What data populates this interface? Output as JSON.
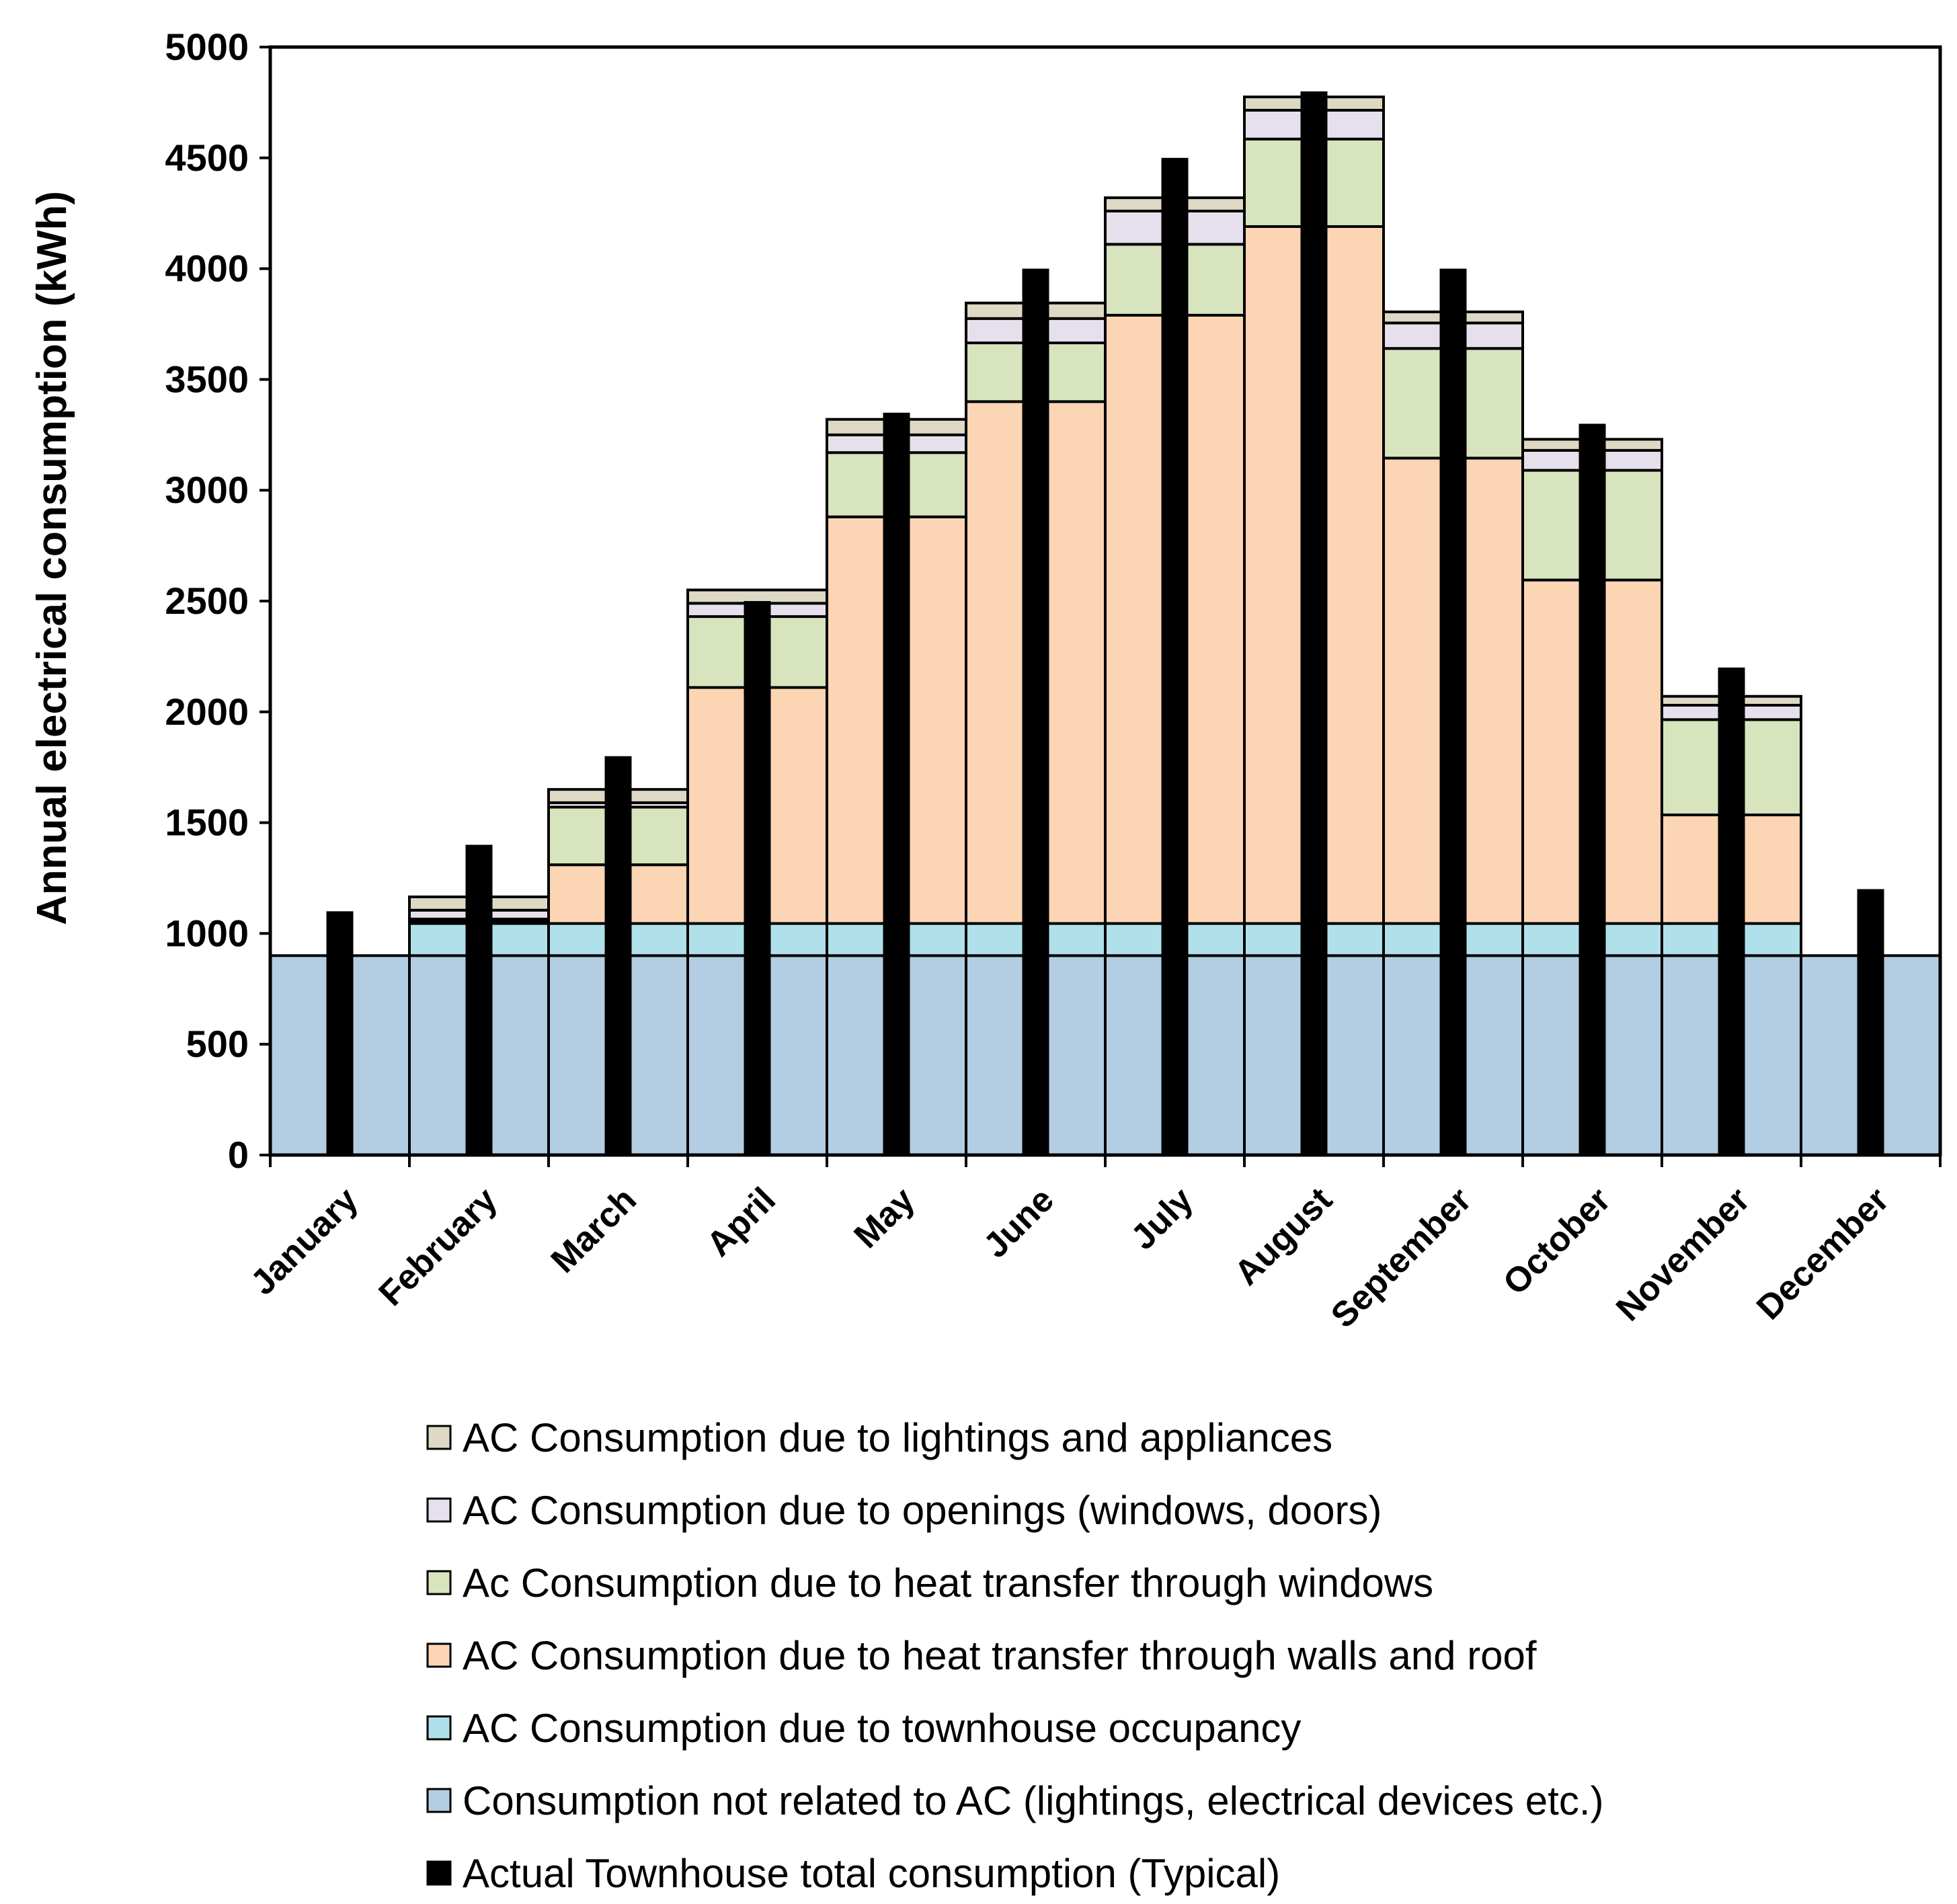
{
  "chart_data": {
    "type": "bar",
    "stacked": true,
    "title": "",
    "xlabel": "",
    "ylabel": "Annual electrical consumption (kWh)",
    "ylim": [
      0,
      5000
    ],
    "yticks": [
      0,
      500,
      1000,
      1500,
      2000,
      2500,
      3000,
      3500,
      4000,
      4500,
      5000
    ],
    "grid": false,
    "legend_position": "bottom",
    "categories": [
      "January",
      "February",
      "March",
      "April",
      "May",
      "June",
      "July",
      "August",
      "September",
      "October",
      "November",
      "December"
    ],
    "stack_series": [
      {
        "name": "Consumption not related to AC (lightings, electrical devices etc.)",
        "color": "#b3cde3",
        "values": [
          900,
          900,
          900,
          900,
          900,
          900,
          900,
          900,
          900,
          900,
          900,
          900
        ]
      },
      {
        "name": "AC Consumption due to townhouse occupancy",
        "color": "#b0e1ea",
        "values": [
          0,
          145,
          145,
          145,
          145,
          145,
          145,
          145,
          145,
          145,
          145,
          0
        ]
      },
      {
        "name": "AC Consumption due to heat transfer through walls and roof",
        "color": "#fcd5b5",
        "values": [
          0,
          10,
          265,
          1065,
          1835,
          2355,
          2745,
          3145,
          2100,
          1550,
          490,
          0
        ]
      },
      {
        "name": "Ac Consumption due to heat transfer through windows",
        "color": "#d7e4bd",
        "values": [
          0,
          10,
          260,
          320,
          290,
          265,
          320,
          395,
          495,
          495,
          430,
          0
        ]
      },
      {
        "name": "AC Consumption due to openings (windows, doors)",
        "color": "#e6e0ec",
        "values": [
          0,
          40,
          20,
          60,
          80,
          110,
          150,
          130,
          115,
          90,
          65,
          0
        ]
      },
      {
        "name": "AC Consumption due to lightings and appliances",
        "color": "#ddd9c4",
        "values": [
          0,
          60,
          60,
          60,
          70,
          70,
          60,
          60,
          50,
          50,
          40,
          0
        ]
      }
    ],
    "total_series": {
      "name": "Actual Townhouse total consumption (Typical)",
      "color": "#000000",
      "values": [
        1100,
        1400,
        1800,
        2500,
        3350,
        4000,
        4500,
        4800,
        4000,
        3300,
        2200,
        1200
      ]
    },
    "legend": [
      {
        "name": "AC Consumption due to lightings and appliances",
        "color": "#ddd9c4"
      },
      {
        "name": "AC Consumption due to openings (windows, doors)",
        "color": "#e6e0ec"
      },
      {
        "name": "Ac Consumption due to heat transfer through windows",
        "color": "#d7e4bd"
      },
      {
        "name": "AC Consumption due to heat transfer through walls and roof",
        "color": "#fcd5b5"
      },
      {
        "name": "AC Consumption due to townhouse occupancy",
        "color": "#b0e1ea"
      },
      {
        "name": "Consumption not related to AC (lightings, electrical devices etc.)",
        "color": "#b3cde3"
      },
      {
        "name": "Actual Townhouse total consumption (Typical)",
        "color": "#000000"
      }
    ]
  }
}
